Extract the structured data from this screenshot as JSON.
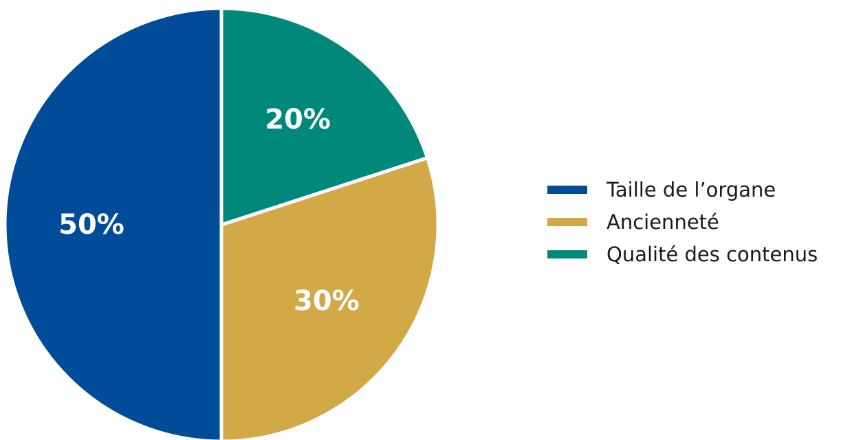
{
  "chart_data": {
    "type": "pie",
    "title": "",
    "series": [
      {
        "name": "Taille de l’organe",
        "value": 50,
        "label": "50%",
        "color": "#004c98"
      },
      {
        "name": "Ancienneté",
        "value": 30,
        "label": "30%",
        "color": "#d3a846"
      },
      {
        "name": "Qualité des contenus",
        "value": 20,
        "label": "20%",
        "color": "#00897a"
      }
    ],
    "start_angle": "12 o'clock, 20% slice first going clockwise, 50% slice on the left",
    "legend_position": "right"
  }
}
